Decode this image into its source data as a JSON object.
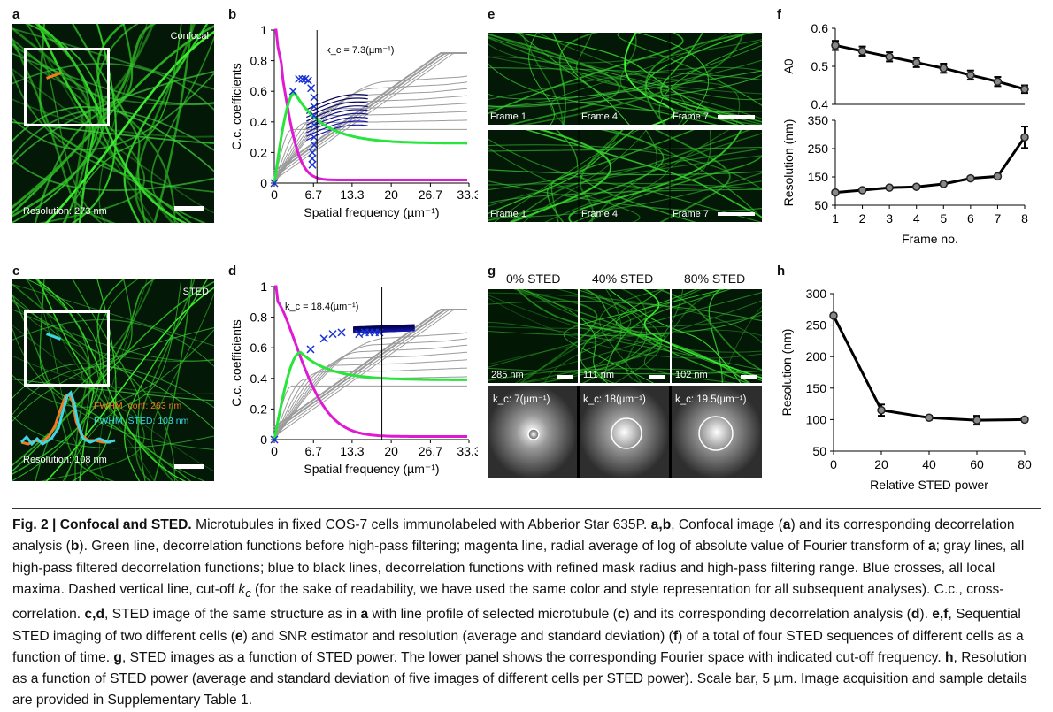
{
  "panels": {
    "a": {
      "letter": "a",
      "corner": "Confocal",
      "resolution": "Resolution: 273 nm"
    },
    "b": {
      "letter": "b",
      "kc": "k_c = 7.3(µm⁻¹)",
      "ylabel": "C.c. coefficients",
      "xlabel": "Spatial frequency (µm⁻¹)",
      "xticks": [
        "0",
        "6.7",
        "13.3",
        "20",
        "26.7",
        "33.3"
      ],
      "yticks": [
        "0",
        "0.2",
        "0.4",
        "0.6",
        "0.8",
        "1"
      ]
    },
    "c": {
      "letter": "c",
      "corner": "STED",
      "resolution": "Resolution: 108 nm",
      "fwhm_conf": "FWHM_conf: 263 nm",
      "fwhm_sted": "FWHM_STED: 103 nm"
    },
    "d": {
      "letter": "d",
      "kc": "k_c = 18.4(µm⁻¹)",
      "ylabel": "C.c. coefficients",
      "xlabel": "Spatial frequency (µm⁻¹)",
      "xticks": [
        "0",
        "6.7",
        "13.3",
        "20",
        "26.7",
        "33.3"
      ],
      "yticks": [
        "0",
        "0.2",
        "0.4",
        "0.6",
        "0.8",
        "1"
      ]
    },
    "e": {
      "letter": "e",
      "frames": [
        "Frame 1",
        "Frame 4",
        "Frame 7"
      ]
    },
    "f": {
      "letter": "f",
      "ylabel_top": "A0",
      "ylabel_bottom": "Resolution (nm)",
      "xlabel": "Frame no.",
      "yticks_top": [
        "0.4",
        "0.5",
        "0.6"
      ],
      "yticks_bottom": [
        "50",
        "150",
        "250",
        "350"
      ],
      "xticks": [
        "1",
        "2",
        "3",
        "4",
        "5",
        "6",
        "7",
        "8"
      ]
    },
    "g": {
      "letter": "g",
      "headers": [
        "0% STED",
        "40% STED",
        "80% STED"
      ],
      "resolutions": [
        "285 nm",
        "111 nm",
        "102 nm"
      ],
      "kc_labels": [
        "k_c: 7(µm⁻¹)",
        "k_c: 18(µm⁻¹)",
        "k_c: 19.5(µm⁻¹)"
      ]
    },
    "h": {
      "letter": "h",
      "ylabel": "Resolution (nm)",
      "xlabel": "Relative STED power",
      "yticks": [
        "50",
        "100",
        "150",
        "200",
        "250",
        "300"
      ],
      "xticks": [
        "0",
        "20",
        "40",
        "60",
        "80"
      ]
    }
  },
  "chart_data": [
    {
      "panel": "f-top",
      "type": "line",
      "xlabel": "Frame no.",
      "ylabel": "A0",
      "x": [
        1,
        2,
        3,
        4,
        5,
        6,
        7,
        8
      ],
      "y": [
        0.555,
        0.54,
        0.525,
        0.51,
        0.495,
        0.477,
        0.46,
        0.44
      ],
      "err": [
        0.012,
        0.012,
        0.012,
        0.012,
        0.012,
        0.012,
        0.012,
        0.01
      ],
      "ylim": [
        0.4,
        0.6
      ]
    },
    {
      "panel": "f-bottom",
      "type": "line",
      "xlabel": "Frame no.",
      "ylabel": "Resolution (nm)",
      "x": [
        1,
        2,
        3,
        4,
        5,
        6,
        7,
        8
      ],
      "y": [
        95,
        103,
        112,
        115,
        125,
        145,
        152,
        290
      ],
      "err": [
        4,
        4,
        4,
        5,
        5,
        6,
        5,
        38
      ],
      "ylim": [
        50,
        350
      ]
    },
    {
      "panel": "h",
      "type": "line",
      "xlabel": "Relative STED power",
      "ylabel": "Resolution (nm)",
      "x": [
        0,
        20,
        40,
        60,
        80
      ],
      "y": [
        265,
        115,
        103,
        99,
        100
      ],
      "err": [
        3,
        9,
        3,
        7,
        3
      ],
      "ylim": [
        50,
        300
      ]
    },
    {
      "panel": "b",
      "type": "line",
      "xlabel": "Spatial frequency (µm⁻¹)",
      "ylabel": "C.c. coefficients",
      "kc": 7.3,
      "xlim": [
        0,
        33.3
      ],
      "ylim": [
        0,
        1
      ]
    },
    {
      "panel": "d",
      "type": "line",
      "xlabel": "Spatial frequency (µm⁻¹)",
      "ylabel": "C.c. coefficients",
      "kc": 18.4,
      "xlim": [
        0,
        33.3
      ],
      "ylim": [
        0,
        1
      ]
    }
  ],
  "caption": {
    "fig": "Fig. 2 | Confocal and STED.",
    "t1": " Microtubules in fixed COS-7 cells immunolabeled with Abberior Star 635P. ",
    "ab": "a",
    "t1b": ",",
    "bb": "b",
    "t2": ", Confocal image (",
    "a2": "a",
    "t3": ") and its corresponding decorrelation analysis (",
    "b2": "b",
    "t4": "). Green line, decorrelation functions before high-pass filtering; magenta line, radial average of log of absolute value of Fourier transform of ",
    "a3": "a",
    "t5": "; gray lines, all high-pass filtered decorrelation functions; blue to black lines, decorrelation functions with refined mask radius and high-pass filtering range. Blue crosses, all local maxima. Dashed vertical line, cut-off ",
    "kc": "k",
    "kcsub": "c",
    "t6": " (for the sake of readability, we have used the same color and style representation for all subsequent analyses). C.c., cross-correlation. ",
    "cd": "c,d",
    "t7": ", STED image of the same structure as in ",
    "a4": "a",
    "t8": " with line profile of selected microtubule (",
    "c2": "c",
    "t9": ") and its corresponding decorrelation analysis (",
    "d2": "d",
    "t10": "). ",
    "ef": "e,f",
    "t11": ", Sequential STED imaging of two different cells (",
    "e2": "e",
    "t12": ") and SNR estimator and resolution (average and standard deviation) (",
    "f2": "f",
    "t13": ") of a total of four STED sequences of different cells as a function of time. ",
    "g": "g",
    "t14": ", STED images as a function of STED power. The lower panel shows the corresponding Fourier space with indicated cut-off frequency. ",
    "h": "h",
    "t15": ", Resolution as a function of STED power (average and standard deviation of five images of different cells per STED power). Scale bar, 5 µm. Image acquisition and sample details are provided in Supplementary Table 1."
  }
}
